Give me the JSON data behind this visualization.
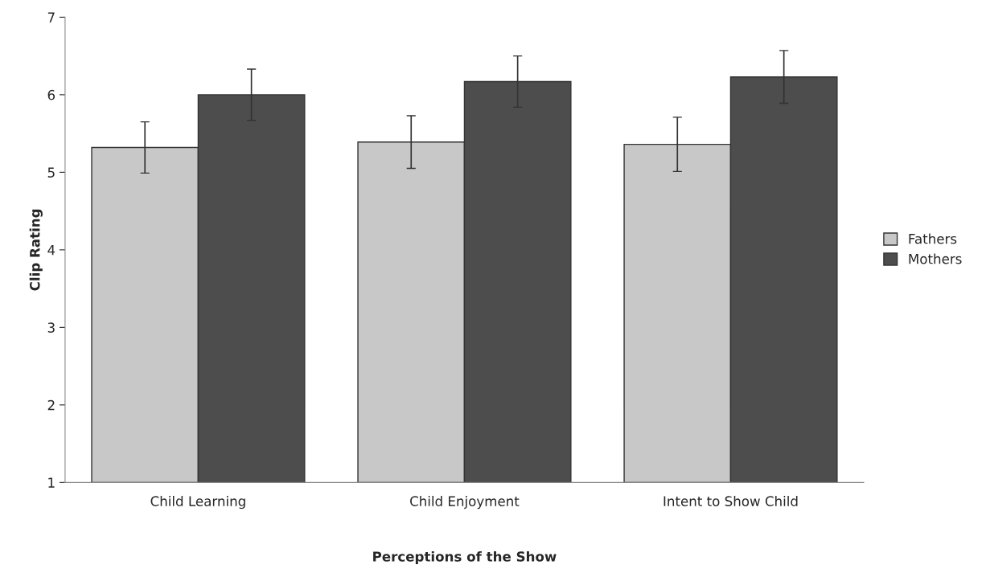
{
  "chart_data": {
    "type": "bar",
    "xlabel": "Perceptions of the Show",
    "ylabel": "Clip Rating",
    "categories": [
      "Child Learning",
      "Child Enjoyment",
      "Intent to Show Child"
    ],
    "series": [
      {
        "name": "Fathers",
        "color": "#c8c8c8",
        "values": [
          5.32,
          5.39,
          5.36
        ],
        "errors": [
          0.33,
          0.34,
          0.35
        ]
      },
      {
        "name": "Mothers",
        "color": "#4d4d4d",
        "values": [
          6.0,
          6.17,
          6.23
        ],
        "errors": [
          0.33,
          0.33,
          0.34
        ]
      }
    ],
    "ylim": [
      1,
      7
    ],
    "yticks": [
      1,
      2,
      3,
      4,
      5,
      6,
      7
    ],
    "grid": false,
    "legend": "right"
  }
}
